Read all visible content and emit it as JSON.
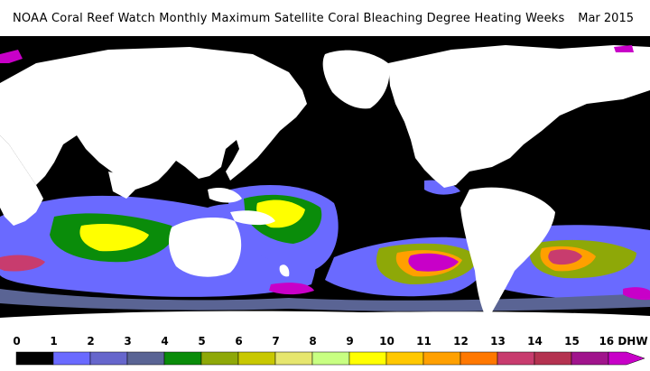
{
  "header": {
    "title": "NOAA Coral Reef Watch Monthly Maximum Satellite Coral Bleaching Degree Heating Weeks",
    "date": "Mar 2015"
  },
  "map": {
    "ocean_color": "#000000",
    "land_color": "#ffffff"
  },
  "legend": {
    "labels": [
      "0",
      "1",
      "2",
      "3",
      "4",
      "5",
      "6",
      "7",
      "8",
      "9",
      "10",
      "11",
      "12",
      "13",
      "14",
      "15",
      "16 DHW"
    ],
    "colors": [
      "#000000",
      "#6a6aff",
      "#6666cc",
      "#5a6494",
      "#0a8c0a",
      "#8ea808",
      "#c8c800",
      "#e6e66e",
      "#c8ff82",
      "#ffff00",
      "#ffc800",
      "#ffa000",
      "#ff7800",
      "#c83c6e",
      "#b43250",
      "#a0148c",
      "#c800c8"
    ]
  }
}
